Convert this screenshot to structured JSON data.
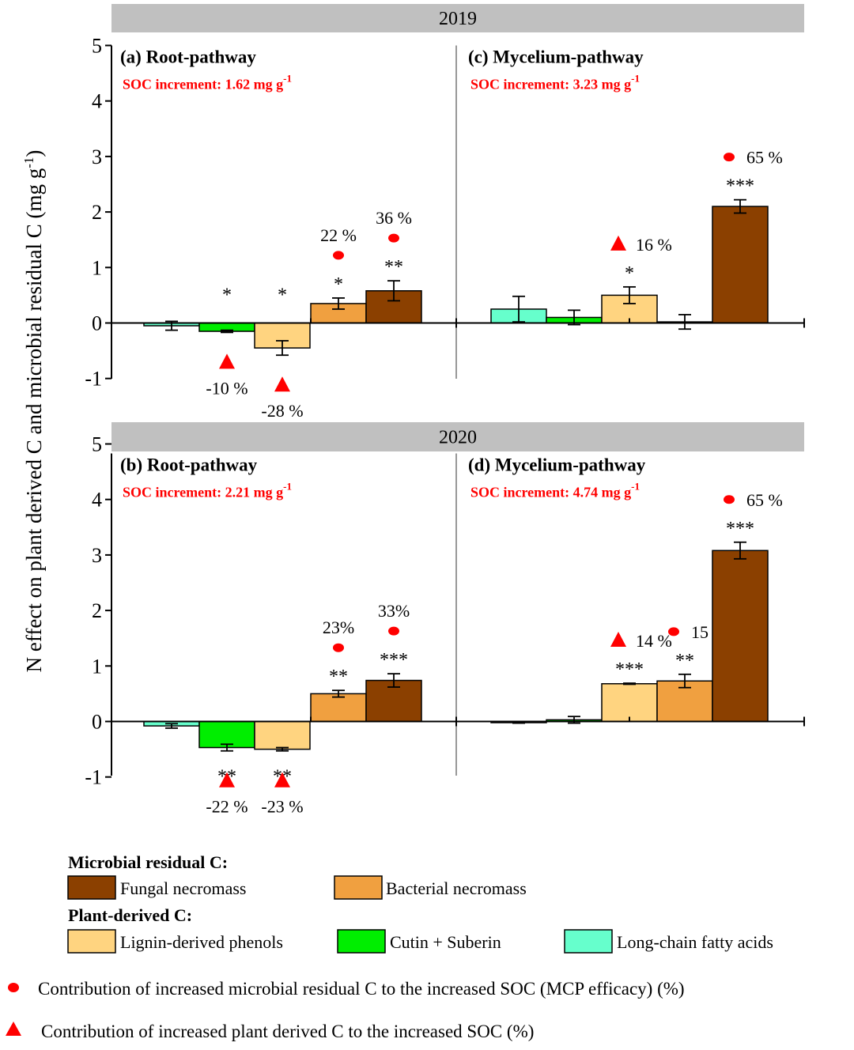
{
  "chart_data": {
    "type": "bar",
    "ylabel_main": "N effect on plant derived C and microbial residual C (mg g",
    "ylabel_sup": "-1",
    "ylabel_close": ")",
    "yticks": [
      "5",
      "4",
      "3",
      "2",
      "1",
      "0",
      "-1"
    ],
    "ylim": [
      -1,
      5
    ],
    "categories": [
      "Long-chain fatty acids",
      "Cutin + Suberin",
      "Lignin-derived phenols",
      "Bacterial necromass",
      "Fungal necromass"
    ],
    "colors": [
      "#66ffcc",
      "#00ee00",
      "#ffd480",
      "#f0a040",
      "#8b4000"
    ],
    "rows": [
      {
        "year": "2019",
        "panels": [
          {
            "label": "(a)  Root-pathway",
            "soc_label": "SOC increment: 1.62 mg  g",
            "soc_sup": "-1",
            "values": [
              -0.05,
              -0.15,
              -0.45,
              0.35,
              0.58
            ],
            "errors": [
              0.08,
              0.02,
              0.13,
              0.1,
              0.18
            ],
            "sig": [
              "",
              "*",
              "*",
              "*",
              "**"
            ],
            "pct": [
              "",
              "-10 %",
              "-28 %",
              "22 %",
              "36 %"
            ],
            "marker": [
              "",
              "triangle",
              "triangle",
              "dot",
              "dot"
            ]
          },
          {
            "label": "(c)  Mycelium-pathway",
            "soc_label": "SOC increment: 3.23 mg g",
            "soc_sup": "-1",
            "values": [
              0.25,
              0.1,
              0.5,
              0.02,
              2.1
            ],
            "errors": [
              0.23,
              0.13,
              0.15,
              0.13,
              0.12
            ],
            "sig": [
              "",
              "",
              "*",
              "",
              "***"
            ],
            "pct": [
              "",
              "",
              "16 %",
              "",
              "65 %"
            ],
            "marker": [
              "",
              "",
              "triangle",
              "",
              "dot"
            ]
          }
        ]
      },
      {
        "year": "2020",
        "panels": [
          {
            "label": "(b)  Root-pathway",
            "soc_label": "SOC increment: 2.21  mg g",
            "soc_sup": "-1",
            "values": [
              -0.08,
              -0.47,
              -0.5,
              0.5,
              0.74
            ],
            "errors": [
              0.04,
              0.06,
              0.03,
              0.06,
              0.12
            ],
            "sig": [
              "",
              "**",
              "**",
              "**",
              "***"
            ],
            "pct": [
              "",
              "-22 %",
              "-23 %",
              "23%",
              "33%"
            ],
            "marker": [
              "",
              "triangle",
              "triangle",
              "dot",
              "dot"
            ]
          },
          {
            "label": "(d)  Mycelium-pathway",
            "soc_label": "SOC increment: 4.74 mg g",
            "soc_sup": "-1",
            "values": [
              -0.02,
              0.03,
              0.68,
              0.73,
              3.08
            ],
            "errors": [
              0.01,
              0.06,
              0.01,
              0.12,
              0.15
            ],
            "sig": [
              "",
              "",
              "***",
              "**",
              "***"
            ],
            "pct": [
              "",
              "",
              "14 %",
              "15 %",
              "65 %"
            ],
            "marker": [
              "",
              "",
              "triangle",
              "dot",
              "dot"
            ]
          }
        ]
      }
    ]
  },
  "legend": {
    "microbial_title": "Microbial residual C:",
    "plant_title": "Plant-derived C:",
    "items": [
      {
        "label": "Fungal necromass",
        "color": "#8b4000"
      },
      {
        "label": "Bacterial necromass",
        "color": "#f0a040"
      },
      {
        "label": "Lignin-derived phenols",
        "color": "#ffd480"
      },
      {
        "label": "Cutin + Suberin",
        "color": "#00ee00"
      },
      {
        "label": "Long-chain fatty acids",
        "color": "#66ffcc"
      }
    ],
    "dot_note": "Contribution of increased microbial residual C to the increased SOC (MCP efficacy) (%)",
    "triangle_note": "Contribution of increased plant derived C to the increased SOC (%)",
    "marker_color": "#ff0000"
  }
}
